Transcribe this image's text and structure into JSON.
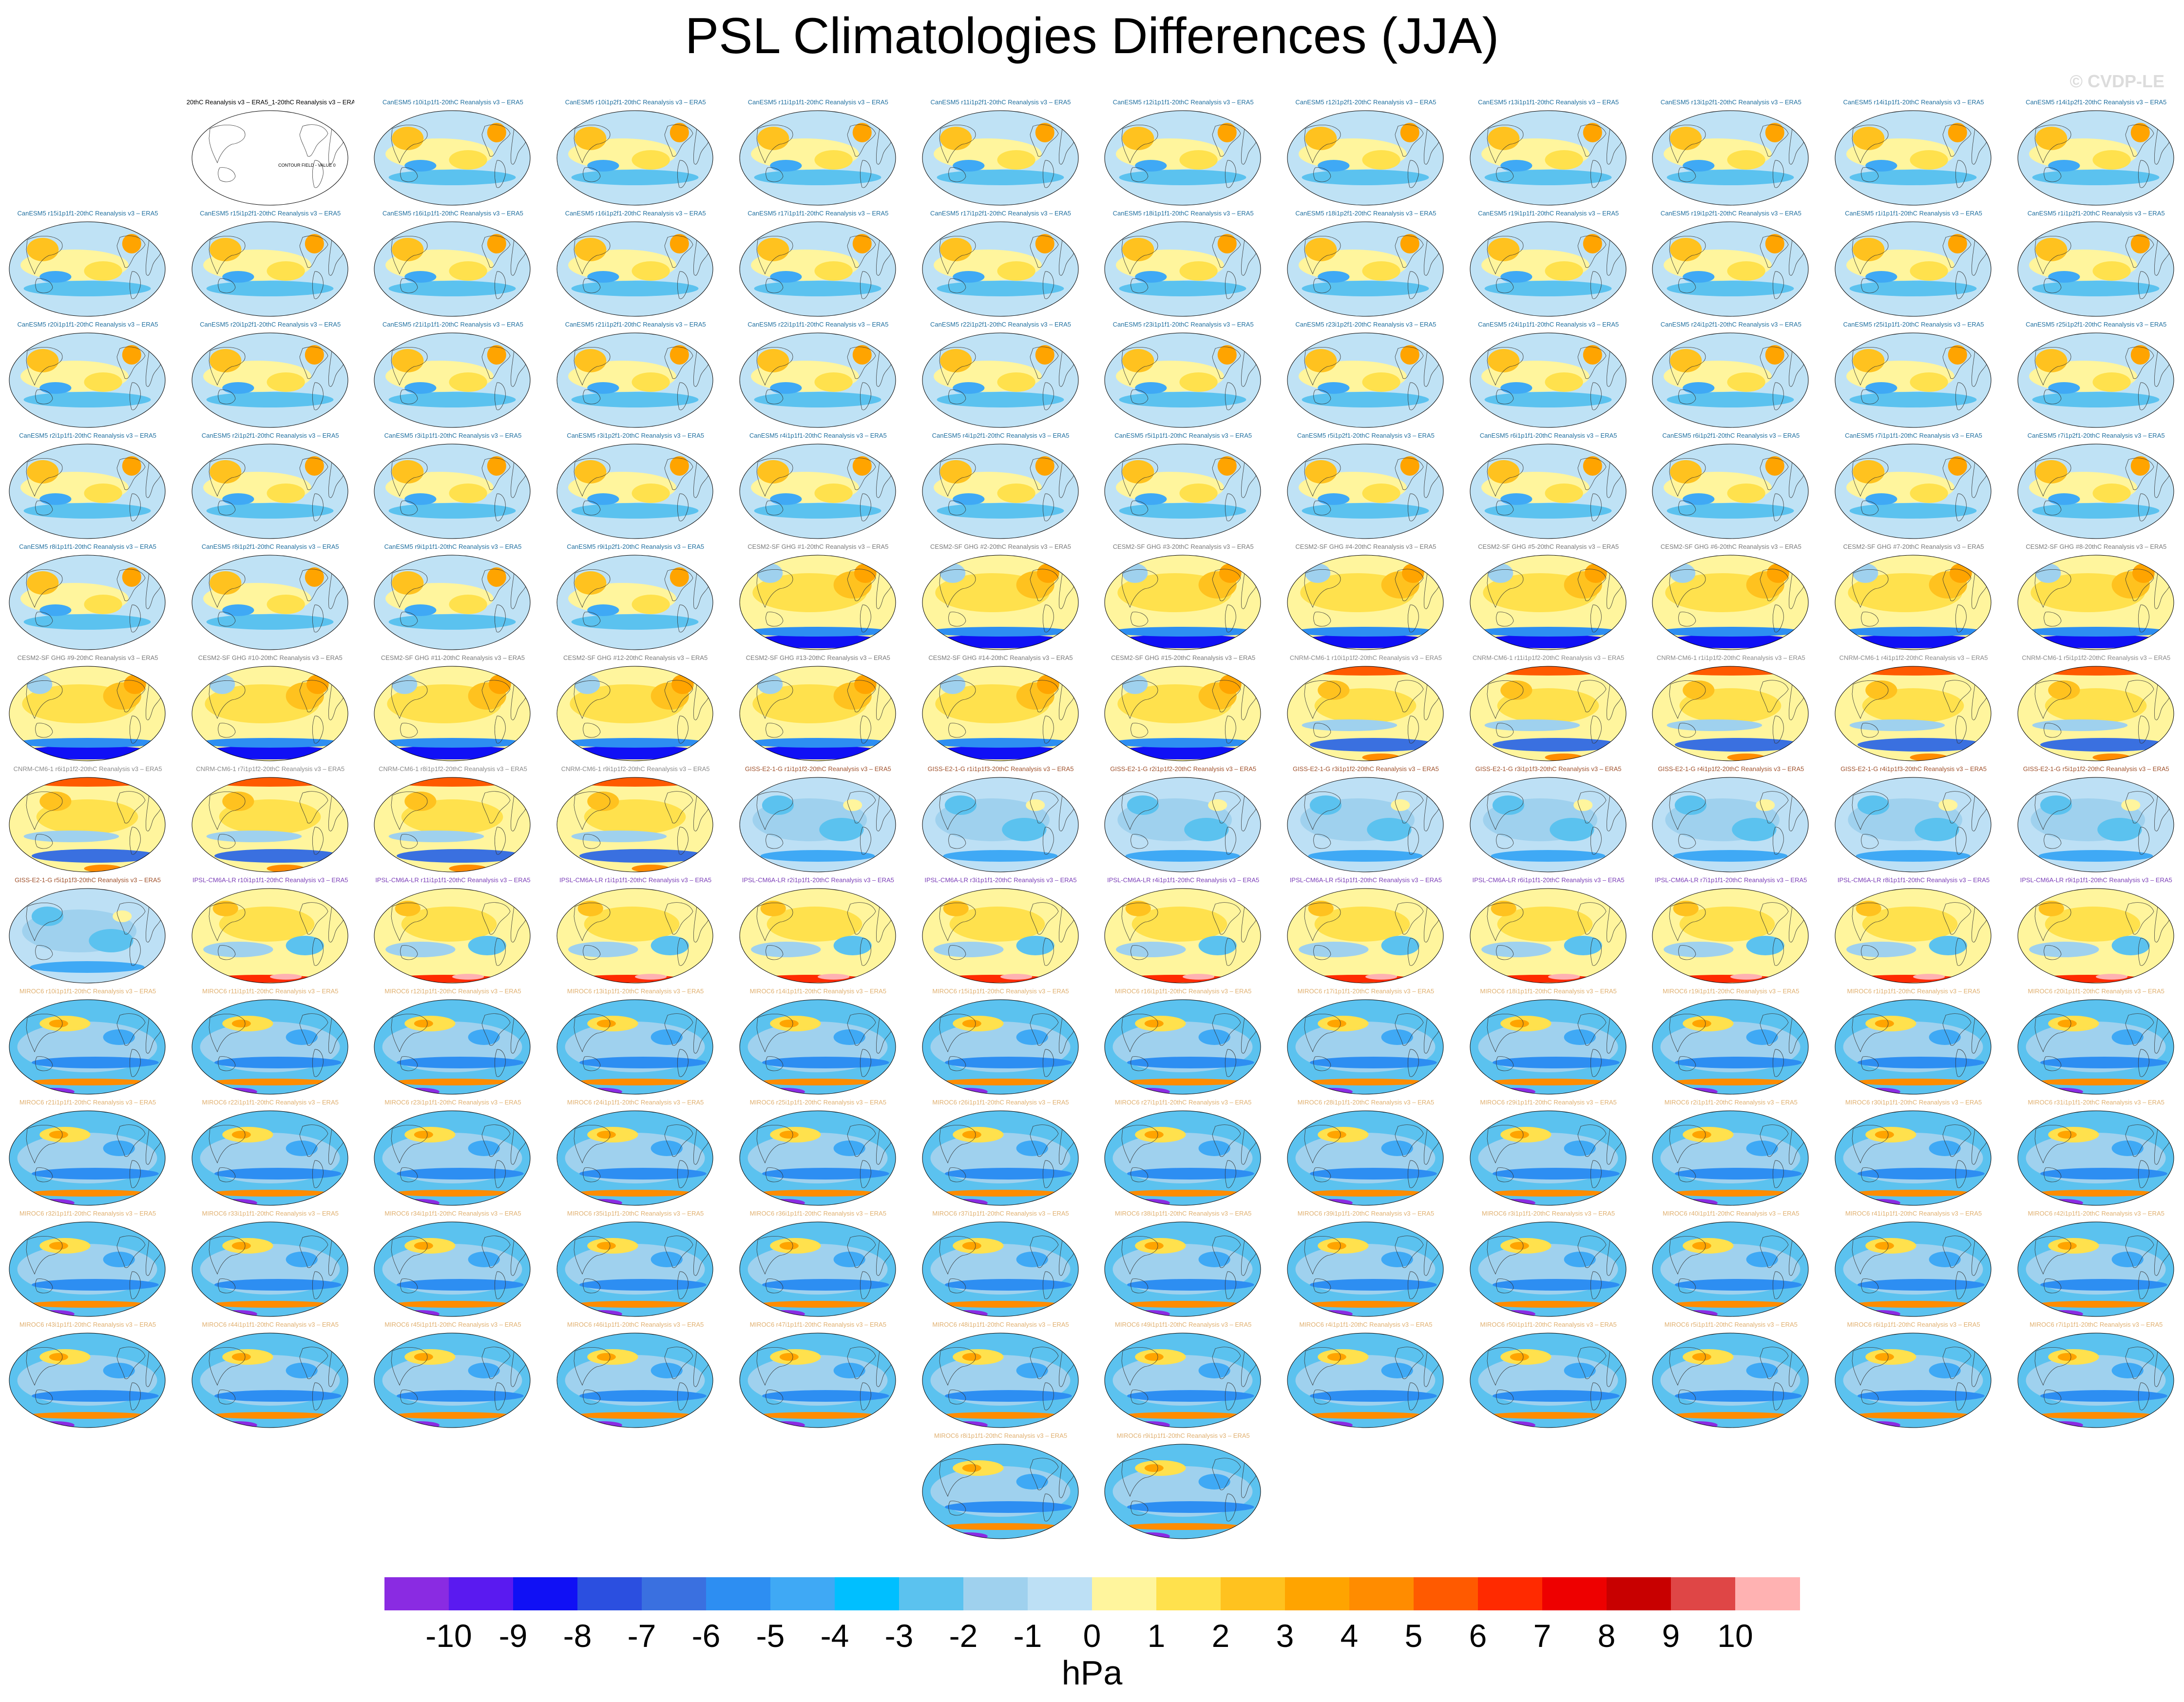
{
  "title": "PSL Climatologies Differences (JJA)",
  "copyright": "© CVDP-LE",
  "chart_data": {
    "type": "heatmap",
    "title": "PSL Climatologies Differences (JJA)",
    "colorbar": {
      "unit": "hPa",
      "tick_labels": [
        "-10",
        "-9",
        "-8",
        "-7",
        "-6",
        "-5",
        "-4",
        "-3",
        "-2",
        "-1",
        "0",
        "1",
        "2",
        "3",
        "4",
        "5",
        "6",
        "7",
        "8",
        "9",
        "10"
      ],
      "colors": [
        "#8a2be2",
        "#5a1af0",
        "#1010f5",
        "#2b4fe0",
        "#3a70e0",
        "#2d8ef2",
        "#3fa9f5",
        "#00bfff",
        "#5bc2ef",
        "#9fd1ee",
        "#bde0f5",
        "#fff59d",
        "#ffe14d",
        "#ffc21f",
        "#ffa400",
        "#ff8c00",
        "#ff5a00",
        "#ff2a00",
        "#ee0000",
        "#c80000",
        "#df4646",
        "#ffb2b2"
      ]
    },
    "panels": [
      {
        "label": "20thC Reanalysis v3 – ERA5_1-20thC Reanalysis v3 – ERA5",
        "group": "ref",
        "note": "CONTOUR FIELD - VALUE 0"
      },
      {
        "label": "CanESM5 r10i1p1f1-20thC Reanalysis v3 – ERA5",
        "group": "canesm"
      },
      {
        "label": "CanESM5 r10i1p2f1-20thC Reanalysis v3 – ERA5",
        "group": "canesm"
      },
      {
        "label": "CanESM5 r11i1p1f1-20thC Reanalysis v3 – ERA5",
        "group": "canesm"
      },
      {
        "label": "CanESM5 r11i1p2f1-20thC Reanalysis v3 – ERA5",
        "group": "canesm"
      },
      {
        "label": "CanESM5 r12i1p1f1-20thC Reanalysis v3 – ERA5",
        "group": "canesm"
      },
      {
        "label": "CanESM5 r12i1p2f1-20thC Reanalysis v3 – ERA5",
        "group": "canesm"
      },
      {
        "label": "CanESM5 r13i1p1f1-20thC Reanalysis v3 – ERA5",
        "group": "canesm"
      },
      {
        "label": "CanESM5 r13i1p2f1-20thC Reanalysis v3 – ERA5",
        "group": "canesm"
      },
      {
        "label": "CanESM5 r14i1p1f1-20thC Reanalysis v3 – ERA5",
        "group": "canesm"
      },
      {
        "label": "CanESM5 r14i1p2f1-20thC Reanalysis v3 – ERA5",
        "group": "canesm"
      },
      {
        "label": "CanESM5 r15i1p1f1-20thC Reanalysis v3 – ERA5",
        "group": "canesm"
      },
      {
        "label": "CanESM5 r15i1p2f1-20thC Reanalysis v3 – ERA5",
        "group": "canesm"
      },
      {
        "label": "CanESM5 r16i1p1f1-20thC Reanalysis v3 – ERA5",
        "group": "canesm"
      },
      {
        "label": "CanESM5 r16i1p2f1-20thC Reanalysis v3 – ERA5",
        "group": "canesm"
      },
      {
        "label": "CanESM5 r17i1p1f1-20thC Reanalysis v3 – ERA5",
        "group": "canesm"
      },
      {
        "label": "CanESM5 r17i1p2f1-20thC Reanalysis v3 – ERA5",
        "group": "canesm"
      },
      {
        "label": "CanESM5 r18i1p1f1-20thC Reanalysis v3 – ERA5",
        "group": "canesm"
      },
      {
        "label": "CanESM5 r18i1p2f1-20thC Reanalysis v3 – ERA5",
        "group": "canesm"
      },
      {
        "label": "CanESM5 r19i1p1f1-20thC Reanalysis v3 – ERA5",
        "group": "canesm"
      },
      {
        "label": "CanESM5 r19i1p2f1-20thC Reanalysis v3 – ERA5",
        "group": "canesm"
      },
      {
        "label": "CanESM5 r1i1p1f1-20thC Reanalysis v3 – ERA5",
        "group": "canesm"
      },
      {
        "label": "CanESM5 r1i1p2f1-20thC Reanalysis v3 – ERA5",
        "group": "canesm"
      },
      {
        "label": "CanESM5 r20i1p1f1-20thC Reanalysis v3 – ERA5",
        "group": "canesm"
      },
      {
        "label": "CanESM5 r20i1p2f1-20thC Reanalysis v3 – ERA5",
        "group": "canesm"
      },
      {
        "label": "CanESM5 r21i1p1f1-20thC Reanalysis v3 – ERA5",
        "group": "canesm"
      },
      {
        "label": "CanESM5 r21i1p2f1-20thC Reanalysis v3 – ERA5",
        "group": "canesm"
      },
      {
        "label": "CanESM5 r22i1p1f1-20thC Reanalysis v3 – ERA5",
        "group": "canesm"
      },
      {
        "label": "CanESM5 r22i1p2f1-20thC Reanalysis v3 – ERA5",
        "group": "canesm"
      },
      {
        "label": "CanESM5 r23i1p1f1-20thC Reanalysis v3 – ERA5",
        "group": "canesm"
      },
      {
        "label": "CanESM5 r23i1p2f1-20thC Reanalysis v3 – ERA5",
        "group": "canesm"
      },
      {
        "label": "CanESM5 r24i1p1f1-20thC Reanalysis v3 – ERA5",
        "group": "canesm"
      },
      {
        "label": "CanESM5 r24i1p2f1-20thC Reanalysis v3 – ERA5",
        "group": "canesm"
      },
      {
        "label": "CanESM5 r25i1p1f1-20thC Reanalysis v3 – ERA5",
        "group": "canesm"
      },
      {
        "label": "CanESM5 r25i1p2f1-20thC Reanalysis v3 – ERA5",
        "group": "canesm"
      },
      {
        "label": "CanESM5 r2i1p1f1-20thC Reanalysis v3 – ERA5",
        "group": "canesm"
      },
      {
        "label": "CanESM5 r2i1p2f1-20thC Reanalysis v3 – ERA5",
        "group": "canesm"
      },
      {
        "label": "CanESM5 r3i1p1f1-20thC Reanalysis v3 – ERA5",
        "group": "canesm"
      },
      {
        "label": "CanESM5 r3i1p2f1-20thC Reanalysis v3 – ERA5",
        "group": "canesm"
      },
      {
        "label": "CanESM5 r4i1p1f1-20thC Reanalysis v3 – ERA5",
        "group": "canesm"
      },
      {
        "label": "CanESM5 r4i1p2f1-20thC Reanalysis v3 – ERA5",
        "group": "canesm"
      },
      {
        "label": "CanESM5 r5i1p1f1-20thC Reanalysis v3 – ERA5",
        "group": "canesm"
      },
      {
        "label": "CanESM5 r5i1p2f1-20thC Reanalysis v3 – ERA5",
        "group": "canesm"
      },
      {
        "label": "CanESM5 r6i1p1f1-20thC Reanalysis v3 – ERA5",
        "group": "canesm"
      },
      {
        "label": "CanESM5 r6i1p2f1-20thC Reanalysis v3 – ERA5",
        "group": "canesm"
      },
      {
        "label": "CanESM5 r7i1p1f1-20thC Reanalysis v3 – ERA5",
        "group": "canesm"
      },
      {
        "label": "CanESM5 r7i1p2f1-20thC Reanalysis v3 – ERA5",
        "group": "canesm"
      },
      {
        "label": "CanESM5 r8i1p1f1-20thC Reanalysis v3 – ERA5",
        "group": "canesm"
      },
      {
        "label": "CanESM5 r8i1p2f1-20thC Reanalysis v3 – ERA5",
        "group": "canesm"
      },
      {
        "label": "CanESM5 r9i1p1f1-20thC Reanalysis v3 – ERA5",
        "group": "canesm"
      },
      {
        "label": "CanESM5 r9i1p2f1-20thC Reanalysis v3 – ERA5",
        "group": "canesm"
      },
      {
        "label": "CESM2-SF GHG #1-20thC Reanalysis v3 – ERA5",
        "group": "cesm"
      },
      {
        "label": "CESM2-SF GHG #2-20thC Reanalysis v3 – ERA5",
        "group": "cesm"
      },
      {
        "label": "CESM2-SF GHG #3-20thC Reanalysis v3 – ERA5",
        "group": "cesm"
      },
      {
        "label": "CESM2-SF GHG #4-20thC Reanalysis v3 – ERA5",
        "group": "cesm"
      },
      {
        "label": "CESM2-SF GHG #5-20thC Reanalysis v3 – ERA5",
        "group": "cesm"
      },
      {
        "label": "CESM2-SF GHG #6-20thC Reanalysis v3 – ERA5",
        "group": "cesm"
      },
      {
        "label": "CESM2-SF GHG #7-20thC Reanalysis v3 – ERA5",
        "group": "cesm"
      },
      {
        "label": "CESM2-SF GHG #8-20thC Reanalysis v3 – ERA5",
        "group": "cesm"
      },
      {
        "label": "CESM2-SF GHG #9-20thC Reanalysis v3 – ERA5",
        "group": "cesm"
      },
      {
        "label": "CESM2-SF GHG #10-20thC Reanalysis v3 – ERA5",
        "group": "cesm"
      },
      {
        "label": "CESM2-SF GHG #11-20thC Reanalysis v3 – ERA5",
        "group": "cesm"
      },
      {
        "label": "CESM2-SF GHG #12-20thC Reanalysis v3 – ERA5",
        "group": "cesm"
      },
      {
        "label": "CESM2-SF GHG #13-20thC Reanalysis v3 – ERA5",
        "group": "cesm"
      },
      {
        "label": "CESM2-SF GHG #14-20thC Reanalysis v3 – ERA5",
        "group": "cesm"
      },
      {
        "label": "CESM2-SF GHG #15-20thC Reanalysis v3 – ERA5",
        "group": "cesm"
      },
      {
        "label": "CNRM-CM6-1 r10i1p1f2-20thC Reanalysis v3 – ERA5",
        "group": "cnrm"
      },
      {
        "label": "CNRM-CM6-1 r11i1p1f2-20thC Reanalysis v3 – ERA5",
        "group": "cnrm"
      },
      {
        "label": "CNRM-CM6-1 r1i1p1f2-20thC Reanalysis v3 – ERA5",
        "group": "cnrm"
      },
      {
        "label": "CNRM-CM6-1 r4i1p1f2-20thC Reanalysis v3 – ERA5",
        "group": "cnrm"
      },
      {
        "label": "CNRM-CM6-1 r5i1p1f2-20thC Reanalysis v3 – ERA5",
        "group": "cnrm"
      },
      {
        "label": "CNRM-CM6-1 r6i1p1f2-20thC Reanalysis v3 – ERA5",
        "group": "cnrm"
      },
      {
        "label": "CNRM-CM6-1 r7i1p1f2-20thC Reanalysis v3 – ERA5",
        "group": "cnrm"
      },
      {
        "label": "CNRM-CM6-1 r8i1p1f2-20thC Reanalysis v3 – ERA5",
        "group": "cnrm"
      },
      {
        "label": "CNRM-CM6-1 r9i1p1f2-20thC Reanalysis v3 – ERA5",
        "group": "cnrm"
      },
      {
        "label": "GISS-E2-1-G r1i1p1f2-20thC Reanalysis v3 – ERA5",
        "group": "giss"
      },
      {
        "label": "GISS-E2-1-G r1i1p1f3-20thC Reanalysis v3 – ERA5",
        "group": "giss"
      },
      {
        "label": "GISS-E2-1-G r2i1p1f2-20thC Reanalysis v3 – ERA5",
        "group": "giss"
      },
      {
        "label": "GISS-E2-1-G r3i1p1f2-20thC Reanalysis v3 – ERA5",
        "group": "giss"
      },
      {
        "label": "GISS-E2-1-G r3i1p1f3-20thC Reanalysis v3 – ERA5",
        "group": "giss"
      },
      {
        "label": "GISS-E2-1-G r4i1p1f2-20thC Reanalysis v3 – ERA5",
        "group": "giss"
      },
      {
        "label": "GISS-E2-1-G r4i1p1f3-20thC Reanalysis v3 – ERA5",
        "group": "giss"
      },
      {
        "label": "GISS-E2-1-G r5i1p1f2-20thC Reanalysis v3 – ERA5",
        "group": "giss"
      },
      {
        "label": "GISS-E2-1-G r5i1p1f3-20thC Reanalysis v3 – ERA5",
        "group": "giss"
      },
      {
        "label": "IPSL-CM6A-LR r10i1p1f1-20thC Reanalysis v3 – ERA5",
        "group": "ipsl"
      },
      {
        "label": "IPSL-CM6A-LR r11i1p1f1-20thC Reanalysis v3 – ERA5",
        "group": "ipsl"
      },
      {
        "label": "IPSL-CM6A-LR r1i1p1f1-20thC Reanalysis v3 – ERA5",
        "group": "ipsl"
      },
      {
        "label": "IPSL-CM6A-LR r2i1p1f1-20thC Reanalysis v3 – ERA5",
        "group": "ipsl"
      },
      {
        "label": "IPSL-CM6A-LR r3i1p1f1-20thC Reanalysis v3 – ERA5",
        "group": "ipsl"
      },
      {
        "label": "IPSL-CM6A-LR r4i1p1f1-20thC Reanalysis v3 – ERA5",
        "group": "ipsl"
      },
      {
        "label": "IPSL-CM6A-LR r5i1p1f1-20thC Reanalysis v3 – ERA5",
        "group": "ipsl"
      },
      {
        "label": "IPSL-CM6A-LR r6i1p1f1-20thC Reanalysis v3 – ERA5",
        "group": "ipsl"
      },
      {
        "label": "IPSL-CM6A-LR r7i1p1f1-20thC Reanalysis v3 – ERA5",
        "group": "ipsl"
      },
      {
        "label": "IPSL-CM6A-LR r8i1p1f1-20thC Reanalysis v3 – ERA5",
        "group": "ipsl"
      },
      {
        "label": "IPSL-CM6A-LR r9i1p1f1-20thC Reanalysis v3 – ERA5",
        "group": "ipsl"
      },
      {
        "label": "MIROC6 r10i1p1f1-20thC Reanalysis v3 – ERA5",
        "group": "miroc"
      },
      {
        "label": "MIROC6 r11i1p1f1-20thC Reanalysis v3 – ERA5",
        "group": "miroc"
      },
      {
        "label": "MIROC6 r12i1p1f1-20thC Reanalysis v3 – ERA5",
        "group": "miroc"
      },
      {
        "label": "MIROC6 r13i1p1f1-20thC Reanalysis v3 – ERA5",
        "group": "miroc"
      },
      {
        "label": "MIROC6 r14i1p1f1-20thC Reanalysis v3 – ERA5",
        "group": "miroc"
      },
      {
        "label": "MIROC6 r15i1p1f1-20thC Reanalysis v3 – ERA5",
        "group": "miroc"
      },
      {
        "label": "MIROC6 r16i1p1f1-20thC Reanalysis v3 – ERA5",
        "group": "miroc"
      },
      {
        "label": "MIROC6 r17i1p1f1-20thC Reanalysis v3 – ERA5",
        "group": "miroc"
      },
      {
        "label": "MIROC6 r18i1p1f1-20thC Reanalysis v3 – ERA5",
        "group": "miroc"
      },
      {
        "label": "MIROC6 r19i1p1f1-20thC Reanalysis v3 – ERA5",
        "group": "miroc"
      },
      {
        "label": "MIROC6 r1i1p1f1-20thC Reanalysis v3 – ERA5",
        "group": "miroc"
      },
      {
        "label": "MIROC6 r20i1p1f1-20thC Reanalysis v3 – ERA5",
        "group": "miroc"
      },
      {
        "label": "MIROC6 r21i1p1f1-20thC Reanalysis v3 – ERA5",
        "group": "miroc"
      },
      {
        "label": "MIROC6 r22i1p1f1-20thC Reanalysis v3 – ERA5",
        "group": "miroc"
      },
      {
        "label": "MIROC6 r23i1p1f1-20thC Reanalysis v3 – ERA5",
        "group": "miroc"
      },
      {
        "label": "MIROC6 r24i1p1f1-20thC Reanalysis v3 – ERA5",
        "group": "miroc"
      },
      {
        "label": "MIROC6 r25i1p1f1-20thC Reanalysis v3 – ERA5",
        "group": "miroc"
      },
      {
        "label": "MIROC6 r26i1p1f1-20thC Reanalysis v3 – ERA5",
        "group": "miroc"
      },
      {
        "label": "MIROC6 r27i1p1f1-20thC Reanalysis v3 – ERA5",
        "group": "miroc"
      },
      {
        "label": "MIROC6 r28i1p1f1-20thC Reanalysis v3 – ERA5",
        "group": "miroc"
      },
      {
        "label": "MIROC6 r29i1p1f1-20thC Reanalysis v3 – ERA5",
        "group": "miroc"
      },
      {
        "label": "MIROC6 r2i1p1f1-20thC Reanalysis v3 – ERA5",
        "group": "miroc"
      },
      {
        "label": "MIROC6 r30i1p1f1-20thC Reanalysis v3 – ERA5",
        "group": "miroc"
      },
      {
        "label": "MIROC6 r31i1p1f1-20thC Reanalysis v3 – ERA5",
        "group": "miroc"
      },
      {
        "label": "MIROC6 r32i1p1f1-20thC Reanalysis v3 – ERA5",
        "group": "miroc"
      },
      {
        "label": "MIROC6 r33i1p1f1-20thC Reanalysis v3 – ERA5",
        "group": "miroc"
      },
      {
        "label": "MIROC6 r34i1p1f1-20thC Reanalysis v3 – ERA5",
        "group": "miroc"
      },
      {
        "label": "MIROC6 r35i1p1f1-20thC Reanalysis v3 – ERA5",
        "group": "miroc"
      },
      {
        "label": "MIROC6 r36i1p1f1-20thC Reanalysis v3 – ERA5",
        "group": "miroc"
      },
      {
        "label": "MIROC6 r37i1p1f1-20thC Reanalysis v3 – ERA5",
        "group": "miroc"
      },
      {
        "label": "MIROC6 r38i1p1f1-20thC Reanalysis v3 – ERA5",
        "group": "miroc"
      },
      {
        "label": "MIROC6 r39i1p1f1-20thC Reanalysis v3 – ERA5",
        "group": "miroc"
      },
      {
        "label": "MIROC6 r3i1p1f1-20thC Reanalysis v3 – ERA5",
        "group": "miroc"
      },
      {
        "label": "MIROC6 r40i1p1f1-20thC Reanalysis v3 – ERA5",
        "group": "miroc"
      },
      {
        "label": "MIROC6 r41i1p1f1-20thC Reanalysis v3 – ERA5",
        "group": "miroc"
      },
      {
        "label": "MIROC6 r42i1p1f1-20thC Reanalysis v3 – ERA5",
        "group": "miroc"
      },
      {
        "label": "MIROC6 r43i1p1f1-20thC Reanalysis v3 – ERA5",
        "group": "miroc"
      },
      {
        "label": "MIROC6 r44i1p1f1-20thC Reanalysis v3 – ERA5",
        "group": "miroc"
      },
      {
        "label": "MIROC6 r45i1p1f1-20thC Reanalysis v3 – ERA5",
        "group": "miroc"
      },
      {
        "label": "MIROC6 r46i1p1f1-20thC Reanalysis v3 – ERA5",
        "group": "miroc"
      },
      {
        "label": "MIROC6 r47i1p1f1-20thC Reanalysis v3 – ERA5",
        "group": "miroc"
      },
      {
        "label": "MIROC6 r48i1p1f1-20thC Reanalysis v3 – ERA5",
        "group": "miroc"
      },
      {
        "label": "MIROC6 r49i1p1f1-20thC Reanalysis v3 – ERA5",
        "group": "miroc"
      },
      {
        "label": "MIROC6 r4i1p1f1-20thC Reanalysis v3 – ERA5",
        "group": "miroc"
      },
      {
        "label": "MIROC6 r50i1p1f1-20thC Reanalysis v3 – ERA5",
        "group": "miroc"
      },
      {
        "label": "MIROC6 r5i1p1f1-20thC Reanalysis v3 – ERA5",
        "group": "miroc"
      },
      {
        "label": "MIROC6 r6i1p1f1-20thC Reanalysis v3 – ERA5",
        "group": "miroc"
      },
      {
        "label": "MIROC6 r7i1p1f1-20thC Reanalysis v3 – ERA5",
        "group": "miroc"
      },
      {
        "label": "MIROC6 r8i1p1f1-20thC Reanalysis v3 – ERA5",
        "group": "miroc"
      },
      {
        "label": "MIROC6 r9i1p1f1-20thC Reanalysis v3 – ERA5",
        "group": "miroc"
      }
    ],
    "groups": {
      "ref": {
        "label_color": "#000000"
      },
      "canesm": {
        "label_color": "#1f6f9f"
      },
      "cesm": {
        "label_color": "#7a7a7a"
      },
      "cnrm": {
        "label_color": "#8a8a8a"
      },
      "giss": {
        "label_color": "#a0522d"
      },
      "ipsl": {
        "label_color": "#7b3fb8"
      },
      "miroc": {
        "label_color": "#e0b070"
      }
    }
  }
}
